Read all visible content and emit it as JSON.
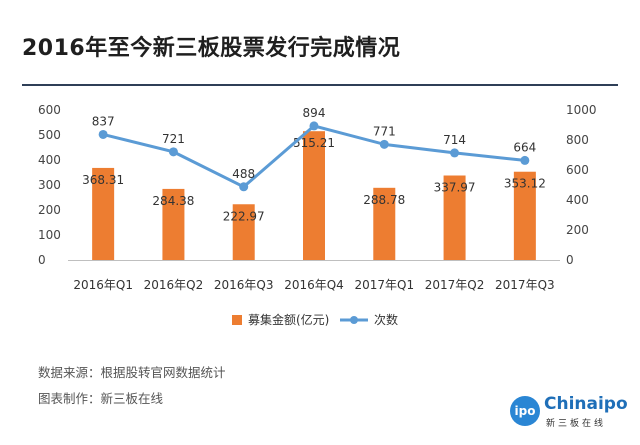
{
  "title": "2016年至今新三板股票发行完成情况",
  "footer": {
    "source": "数据来源：根据股转官网数据统计",
    "maker": "图表制作：新三板在线"
  },
  "logo": {
    "badge": "ipo",
    "name": "Chinaipo",
    "sub": "新三板在线"
  },
  "colors": {
    "bar": "#ed7d31",
    "line": "#5b9bd5",
    "rule": "#2f3f57"
  },
  "chart_data": {
    "type": "bar",
    "categories": [
      "2016年Q1",
      "2016年Q2",
      "2016年Q3",
      "2016年Q4",
      "2017年Q1",
      "2017年Q2",
      "2017年Q3"
    ],
    "series": [
      {
        "name": "募集金额(亿元)",
        "type": "bar",
        "axis": "left",
        "values": [
          368.31,
          284.38,
          222.97,
          515.21,
          288.78,
          337.97,
          353.12
        ],
        "labels": [
          "368.31",
          "284.38",
          "222.97",
          "515.21",
          "288.78",
          "337.97",
          "353.12"
        ]
      },
      {
        "name": "次数",
        "type": "line",
        "axis": "right",
        "values": [
          837,
          721,
          488,
          894,
          771,
          714,
          664
        ],
        "labels": [
          "837",
          "721",
          "488",
          "894",
          "771",
          "714",
          "664"
        ]
      }
    ],
    "y_left": {
      "ylim": [
        0,
        600
      ],
      "ticks": [
        "0",
        "100",
        "200",
        "300",
        "400",
        "500",
        "600"
      ]
    },
    "y_right": {
      "ylim": [
        0,
        1000
      ],
      "ticks": [
        "0",
        "200",
        "400",
        "600",
        "800",
        "1000"
      ]
    },
    "legend": "bottom-center"
  }
}
